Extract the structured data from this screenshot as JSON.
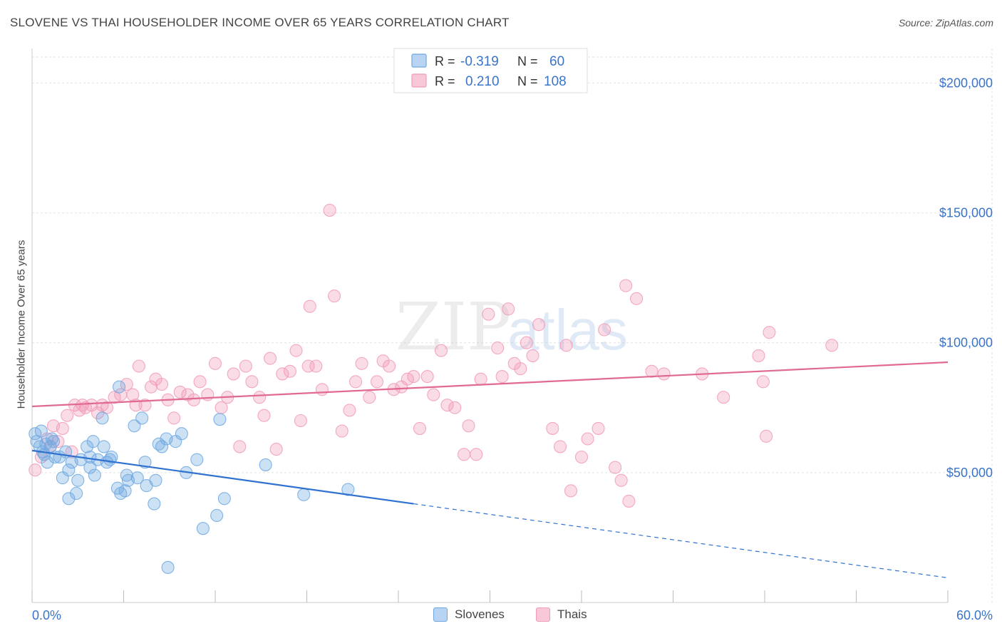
{
  "title": "SLOVENE VS THAI HOUSEHOLDER INCOME OVER 65 YEARS CORRELATION CHART",
  "source": "Source: ZipAtlas.com",
  "watermark": {
    "zip": "ZIP",
    "atlas": "atlas"
  },
  "colors": {
    "blue": "#6fa8e0",
    "blue_line": "#2f72d0",
    "pink": "#f19bb8",
    "pink_line": "#e06a94",
    "axis_text": "#3a74c8"
  },
  "legend_top": [
    {
      "r_label": "R =",
      "r_value": "-0.319",
      "n_label": "N =",
      "n_value": "60"
    },
    {
      "r_label": "R =",
      "r_value": "0.210",
      "n_label": "N =",
      "n_value": "108"
    }
  ],
  "legend_bottom": [
    {
      "label": "Slovenes"
    },
    {
      "label": "Thais"
    }
  ],
  "chart_data": {
    "type": "scatter",
    "title": "SLOVENE VS THAI HOUSEHOLDER INCOME OVER 65 YEARS CORRELATION CHART",
    "xlabel": "",
    "ylabel": "Householder Income Over 65 years",
    "xlim": [
      0,
      60
    ],
    "ylim": [
      0,
      210000
    ],
    "x_tick_labels": [
      "0.0%",
      "60.0%"
    ],
    "y_ticks": [
      50000,
      100000,
      150000,
      200000
    ],
    "y_tick_labels": [
      "$50,000",
      "$100,000",
      "$150,000",
      "$200,000"
    ],
    "grid": true,
    "series": [
      {
        "name": "Slovenes",
        "color": "#6fa8e0",
        "r": -0.319,
        "n": 60,
        "trend": {
          "x0": 0,
          "y0": 58500,
          "x1": 25,
          "y1": 38000,
          "x_end_dashed": 60,
          "y_end_dashed": 9500
        },
        "points": [
          [
            0.2,
            65000
          ],
          [
            0.3,
            62000
          ],
          [
            0.5,
            60000
          ],
          [
            0.7,
            58000
          ],
          [
            0.8,
            57000
          ],
          [
            0.9,
            61000
          ],
          [
            1.0,
            54000
          ],
          [
            1.2,
            60000
          ],
          [
            1.4,
            62000
          ],
          [
            1.5,
            56000
          ],
          [
            1.8,
            56000
          ],
          [
            2.0,
            48000
          ],
          [
            2.2,
            58000
          ],
          [
            2.4,
            51000
          ],
          [
            2.6,
            54000
          ],
          [
            2.9,
            42000
          ],
          [
            2.4,
            40000
          ],
          [
            3.0,
            47000
          ],
          [
            3.2,
            55000
          ],
          [
            3.6,
            60000
          ],
          [
            3.8,
            56000
          ],
          [
            4.0,
            62000
          ],
          [
            4.1,
            49000
          ],
          [
            4.3,
            55000
          ],
          [
            4.6,
            71000
          ],
          [
            4.7,
            60000
          ],
          [
            4.9,
            54000
          ],
          [
            5.1,
            55000
          ],
          [
            5.2,
            56000
          ],
          [
            5.6,
            44000
          ],
          [
            5.7,
            83000
          ],
          [
            5.8,
            42000
          ],
          [
            6.1,
            43000
          ],
          [
            6.2,
            49000
          ],
          [
            6.3,
            47000
          ],
          [
            6.7,
            68000
          ],
          [
            6.9,
            48000
          ],
          [
            7.2,
            71000
          ],
          [
            7.4,
            54000
          ],
          [
            7.5,
            45000
          ],
          [
            8.0,
            38000
          ],
          [
            8.1,
            47000
          ],
          [
            8.3,
            61000
          ],
          [
            8.5,
            60000
          ],
          [
            8.8,
            63000
          ],
          [
            8.9,
            13500
          ],
          [
            9.4,
            62000
          ],
          [
            9.8,
            65000
          ],
          [
            10.1,
            50000
          ],
          [
            10.8,
            55000
          ],
          [
            11.2,
            28500
          ],
          [
            12.1,
            33500
          ],
          [
            12.3,
            70500
          ],
          [
            12.6,
            40000
          ],
          [
            15.3,
            53000
          ],
          [
            17.8,
            41500
          ],
          [
            20.7,
            43500
          ],
          [
            3.8,
            52000
          ],
          [
            1.3,
            63000
          ],
          [
            0.6,
            66000
          ]
        ]
      },
      {
        "name": "Thais",
        "color": "#f19bb8",
        "r": 0.21,
        "n": 108,
        "trend": {
          "x0": 0,
          "y0": 75500,
          "x1": 60,
          "y1": 92500
        },
        "points": [
          [
            0.2,
            51000
          ],
          [
            0.6,
            56000
          ],
          [
            1.0,
            63000
          ],
          [
            1.2,
            60000
          ],
          [
            1.4,
            68000
          ],
          [
            1.7,
            62000
          ],
          [
            2.0,
            67000
          ],
          [
            2.3,
            72000
          ],
          [
            2.6,
            58000
          ],
          [
            2.8,
            76000
          ],
          [
            3.1,
            74000
          ],
          [
            3.3,
            76000
          ],
          [
            3.5,
            75000
          ],
          [
            3.9,
            76000
          ],
          [
            4.3,
            73000
          ],
          [
            4.6,
            76000
          ],
          [
            4.9,
            75000
          ],
          [
            5.4,
            79000
          ],
          [
            5.8,
            80000
          ],
          [
            6.2,
            84000
          ],
          [
            6.6,
            80000
          ],
          [
            6.8,
            76000
          ],
          [
            7.0,
            91000
          ],
          [
            7.4,
            76000
          ],
          [
            7.8,
            83000
          ],
          [
            8.1,
            86000
          ],
          [
            8.5,
            84000
          ],
          [
            8.9,
            78000
          ],
          [
            9.3,
            71000
          ],
          [
            9.7,
            81000
          ],
          [
            10.2,
            80000
          ],
          [
            10.6,
            78000
          ],
          [
            11.0,
            85000
          ],
          [
            11.5,
            80000
          ],
          [
            12.0,
            92000
          ],
          [
            12.4,
            75000
          ],
          [
            12.8,
            79000
          ],
          [
            13.2,
            88000
          ],
          [
            13.6,
            60000
          ],
          [
            14.0,
            91000
          ],
          [
            14.4,
            85000
          ],
          [
            14.9,
            79000
          ],
          [
            15.2,
            72000
          ],
          [
            15.6,
            94000
          ],
          [
            16.0,
            59000
          ],
          [
            16.4,
            88000
          ],
          [
            16.9,
            89000
          ],
          [
            17.3,
            97000
          ],
          [
            17.6,
            70000
          ],
          [
            18.1,
            91000
          ],
          [
            18.6,
            91000
          ],
          [
            19.0,
            82000
          ],
          [
            19.5,
            151000
          ],
          [
            19.8,
            118000
          ],
          [
            20.3,
            66000
          ],
          [
            20.8,
            74000
          ],
          [
            21.2,
            85000
          ],
          [
            21.6,
            92000
          ],
          [
            22.1,
            79000
          ],
          [
            22.6,
            85000
          ],
          [
            23.0,
            93000
          ],
          [
            23.4,
            91000
          ],
          [
            23.7,
            82000
          ],
          [
            24.2,
            83000
          ],
          [
            24.6,
            86000
          ],
          [
            25.0,
            87000
          ],
          [
            25.4,
            67000
          ],
          [
            25.9,
            87000
          ],
          [
            26.3,
            80000
          ],
          [
            26.8,
            97000
          ],
          [
            27.2,
            76000
          ],
          [
            27.7,
            75000
          ],
          [
            28.3,
            57000
          ],
          [
            28.6,
            68000
          ],
          [
            29.1,
            57000
          ],
          [
            29.4,
            86000
          ],
          [
            29.9,
            111000
          ],
          [
            30.5,
            98000
          ],
          [
            30.8,
            87000
          ],
          [
            31.2,
            113000
          ],
          [
            31.6,
            92000
          ],
          [
            32.0,
            90000
          ],
          [
            32.4,
            100000
          ],
          [
            32.8,
            95000
          ],
          [
            33.2,
            107000
          ],
          [
            34.1,
            67000
          ],
          [
            34.6,
            60000
          ],
          [
            35.0,
            99000
          ],
          [
            35.3,
            43000
          ],
          [
            36.0,
            56000
          ],
          [
            36.4,
            63000
          ],
          [
            37.1,
            67000
          ],
          [
            37.5,
            105000
          ],
          [
            38.2,
            52000
          ],
          [
            38.6,
            47000
          ],
          [
            38.9,
            122000
          ],
          [
            39.1,
            39000
          ],
          [
            39.6,
            117000
          ],
          [
            40.6,
            89000
          ],
          [
            41.4,
            88000
          ],
          [
            43.9,
            88000
          ],
          [
            45.3,
            79000
          ],
          [
            47.6,
            95000
          ],
          [
            47.9,
            85000
          ],
          [
            48.1,
            64000
          ],
          [
            48.3,
            104000
          ],
          [
            52.4,
            99000
          ],
          [
            18.2,
            114000
          ]
        ]
      }
    ]
  }
}
